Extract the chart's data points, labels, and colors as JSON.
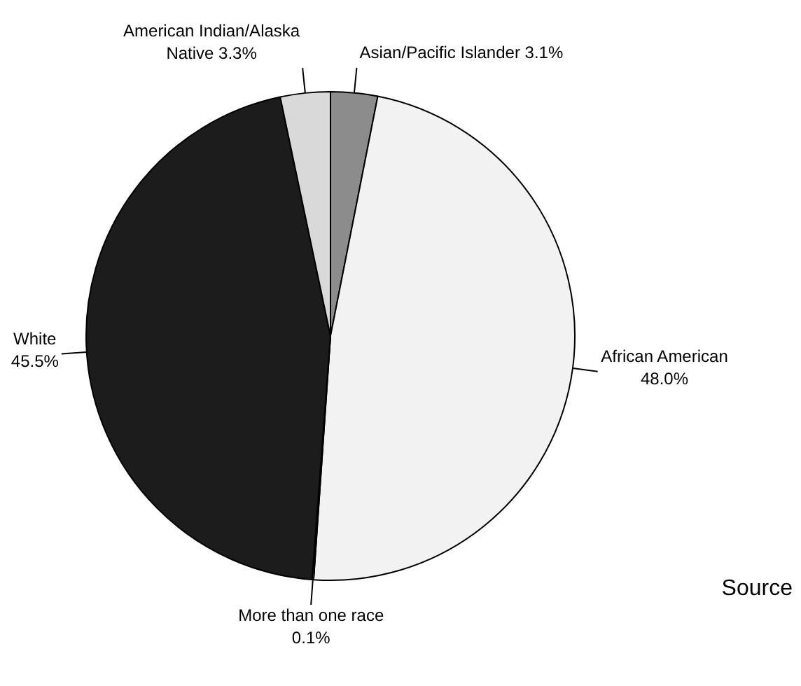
{
  "chart_data": {
    "type": "pie",
    "categories": [
      "Asian/Pacific Islander",
      "African American",
      "More than one race",
      "White",
      "American Indian/Alaska Native"
    ],
    "values": [
      3.1,
      48.0,
      0.1,
      45.5,
      3.3
    ],
    "value_labels": [
      "3.1%",
      "48.0%",
      "0.1%",
      "45.5%",
      "3.3%"
    ],
    "colors": [
      "#8c8c8c",
      "#f2f2f2",
      "#ffffff",
      "#1c1c1c",
      "#d9d9d9"
    ],
    "legend": false,
    "annotations": [
      "Source"
    ]
  }
}
